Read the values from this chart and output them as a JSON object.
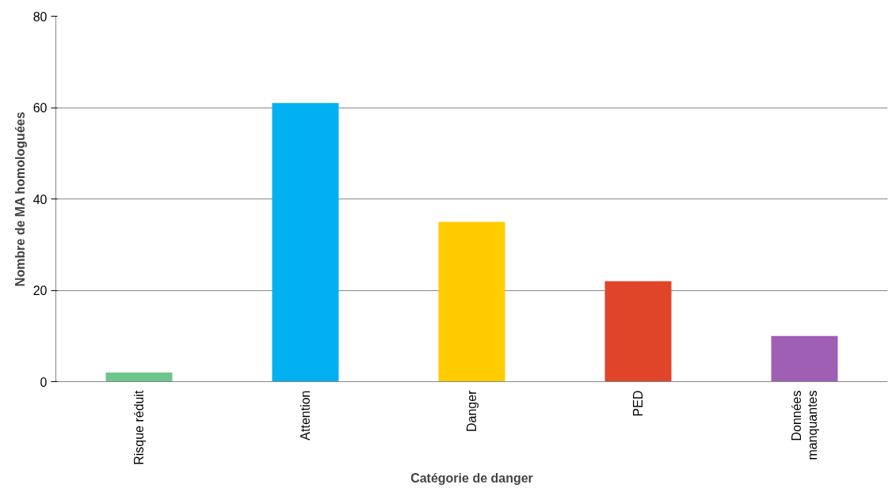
{
  "chart_data": {
    "type": "bar",
    "xlabel": "Catégorie de danger",
    "ylabel": "Nombre de MA homologuées",
    "categories": [
      "Risque réduit",
      "Attention",
      "Danger",
      "PED",
      "Données manquantes"
    ],
    "values": [
      2,
      61,
      35,
      22,
      10
    ],
    "colors": [
      "#6cc68c",
      "#00b0f0",
      "#ffcc00",
      "#e0452a",
      "#9e5fb5"
    ],
    "ylim": [
      0,
      80
    ],
    "yticks": [
      0,
      20,
      40,
      60,
      80
    ],
    "grid": "y"
  }
}
